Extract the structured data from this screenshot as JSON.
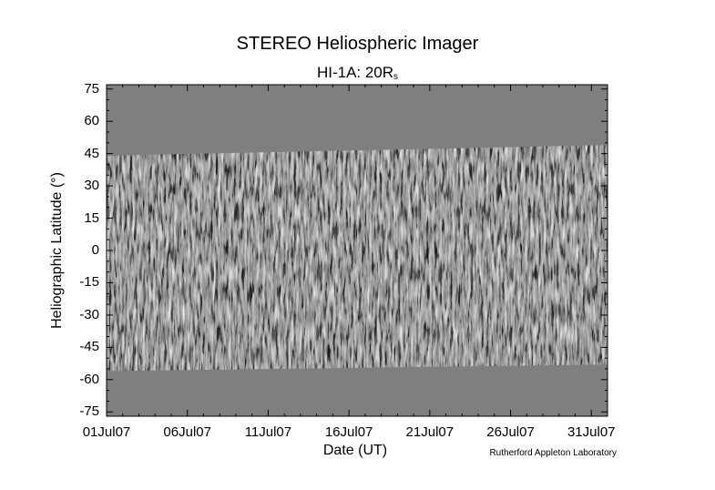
{
  "chart_data": {
    "type": "heatmap",
    "title": "STEREO Heliospheric Imager",
    "subtitle_main": "HI-1A: 20R",
    "subtitle_sub": "s",
    "xlabel": "Date (UT)",
    "ylabel": "Heliographic Latitude (°)",
    "credit": "Rutherford Appleton Laboratory",
    "x_tick_labels": [
      "01Jul07",
      "06Jul07",
      "11Jul07",
      "16Jul07",
      "21Jul07",
      "26Jul07",
      "31Jul07"
    ],
    "x_tick_days": [
      1,
      6,
      11,
      16,
      21,
      26,
      31
    ],
    "xlim_days": [
      1,
      32
    ],
    "ylim": [
      -77,
      77
    ],
    "y_tick_values": [
      75,
      60,
      45,
      30,
      15,
      0,
      -15,
      -30,
      -45,
      -60,
      -75
    ],
    "y_tick_labels": [
      "75",
      "60",
      "45",
      "30",
      "15",
      "0",
      "-15",
      "-30",
      "-45",
      "-60",
      "-75"
    ],
    "data_coverage": {
      "start_day": [
        1,
        32
      ],
      "top_latitude": [
        44,
        49
      ],
      "bottom_latitude": [
        -56,
        -53
      ]
    },
    "colors": {
      "no_data_fill": "#7f7f7f",
      "frame": "#000000"
    }
  }
}
